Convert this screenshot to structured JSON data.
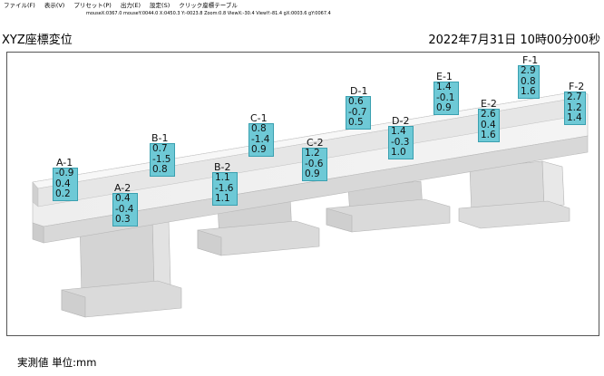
{
  "menu": [
    "ファイル(F)",
    "表示(V)",
    "プリセット(P)",
    "出力(E)",
    "設定(S)",
    "クリック座標テーブル"
  ],
  "status_line": "mouseX:0367.0 mouseY:0044.0 X:0450.3 Y:-0023.8 Zoom:0.8 ViewX:-30.4 ViewY:-81.4 gX:0003.6 gY:0067.4",
  "title": "XYZ座標変位",
  "datetime": "2022年7月31日 10時00分00秒",
  "footer": "実測値 単位:mm",
  "colors": {
    "value_box": "#6ec9d6",
    "structure": "#e0e0e0"
  },
  "points": [
    {
      "id": "A-1",
      "x": "-0.9",
      "y": "0.4",
      "z": "0.2"
    },
    {
      "id": "A-2",
      "x": "0.4",
      "y": "-0.4",
      "z": "0.3"
    },
    {
      "id": "B-1",
      "x": "0.7",
      "y": "-1.5",
      "z": "0.8"
    },
    {
      "id": "B-2",
      "x": "1.1",
      "y": "-1.6",
      "z": "1.1"
    },
    {
      "id": "C-1",
      "x": "0.8",
      "y": "-1.4",
      "z": "0.9"
    },
    {
      "id": "C-2",
      "x": "1.2",
      "y": "-0.6",
      "z": "0.9"
    },
    {
      "id": "D-1",
      "x": "0.6",
      "y": "-0.7",
      "z": "0.5"
    },
    {
      "id": "D-2",
      "x": "1.4",
      "y": "-0.3",
      "z": "1.0"
    },
    {
      "id": "E-1",
      "x": "1.4",
      "y": "-0.1",
      "z": "0.9"
    },
    {
      "id": "E-2",
      "x": "2.6",
      "y": "0.4",
      "z": "1.6"
    },
    {
      "id": "F-1",
      "x": "2.9",
      "y": "0.8",
      "z": "1.6"
    },
    {
      "id": "F-2",
      "x": "2.7",
      "y": "1.2",
      "z": "1.4"
    }
  ]
}
